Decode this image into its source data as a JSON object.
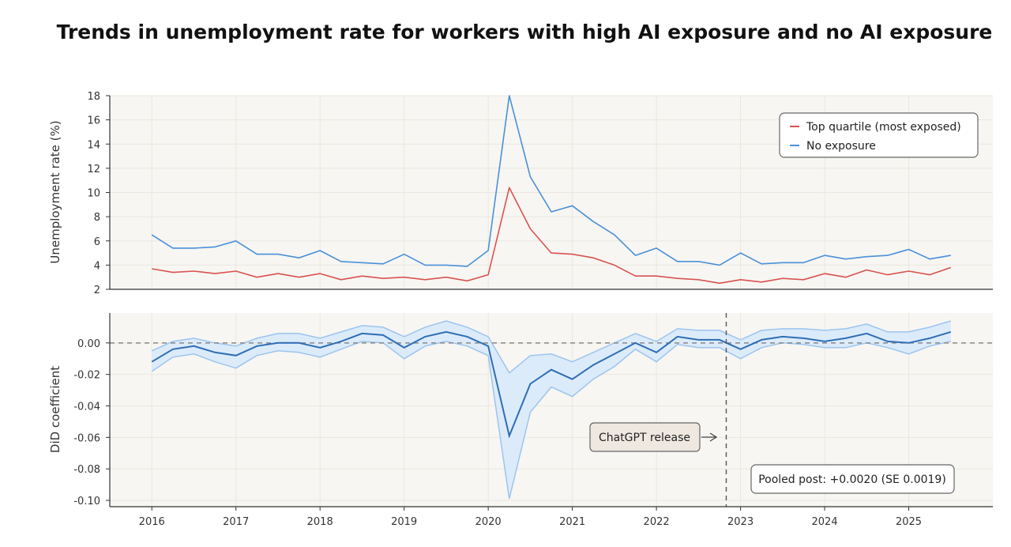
{
  "title": "Trends in unemployment rate for workers with high AI exposure and no AI exposure",
  "x_tick_labels": [
    "2016",
    "2017",
    "2018",
    "2019",
    "2020",
    "2021",
    "2022",
    "2023",
    "2024",
    "2025"
  ],
  "colors": {
    "top_quartile": "#d9534f",
    "no_exposure": "#4a90d9",
    "did_line": "#2f6db5",
    "ci_fill": "#dcebfa",
    "ci_edge": "#9cc4ee",
    "plot_bg": "#f7f6f3",
    "grid": "#ebe7df",
    "axis": "#333333",
    "annotation_box": "#efe8e0"
  },
  "chart_data": [
    {
      "type": "line",
      "ylabel": "Unemployment rate (%)",
      "xlim": [
        2015.5,
        2026.0
      ],
      "ylim": [
        2,
        18
      ],
      "y_ticks": [
        2,
        4,
        6,
        8,
        10,
        12,
        14,
        16,
        18
      ],
      "grid": true,
      "legend_position": "top-right",
      "x": [
        2016.0,
        2016.25,
        2016.5,
        2016.75,
        2017.0,
        2017.25,
        2017.5,
        2017.75,
        2018.0,
        2018.25,
        2018.5,
        2018.75,
        2019.0,
        2019.25,
        2019.5,
        2019.75,
        2020.0,
        2020.25,
        2020.5,
        2020.75,
        2021.0,
        2021.25,
        2021.5,
        2021.75,
        2022.0,
        2022.25,
        2022.5,
        2022.75,
        2023.0,
        2023.25,
        2023.5,
        2023.75,
        2024.0,
        2024.25,
        2024.5,
        2024.75,
        2025.0,
        2025.25,
        2025.5
      ],
      "series": [
        {
          "name": "Top quartile (most exposed)",
          "values": [
            3.7,
            3.4,
            3.5,
            3.3,
            3.5,
            3.0,
            3.3,
            3.0,
            3.3,
            2.8,
            3.1,
            2.9,
            3.0,
            2.8,
            3.0,
            2.7,
            3.2,
            10.4,
            7.0,
            5.0,
            4.9,
            4.6,
            4.0,
            3.1,
            3.1,
            2.9,
            2.8,
            2.5,
            2.8,
            2.6,
            2.9,
            2.8,
            3.3,
            3.0,
            3.6,
            3.2,
            3.5,
            3.2,
            3.8
          ]
        },
        {
          "name": "No exposure",
          "values": [
            6.5,
            5.4,
            5.4,
            5.5,
            6.0,
            4.9,
            4.9,
            4.6,
            5.2,
            4.3,
            4.2,
            4.1,
            4.9,
            4.0,
            4.0,
            3.9,
            5.2,
            18.0,
            11.3,
            8.4,
            8.9,
            7.6,
            6.5,
            4.8,
            5.4,
            4.3,
            4.3,
            4.0,
            5.0,
            4.1,
            4.2,
            4.2,
            4.8,
            4.5,
            4.7,
            4.8,
            5.3,
            4.5,
            4.8
          ]
        }
      ]
    },
    {
      "type": "line",
      "ylabel": "DiD coefficient",
      "xlim": [
        2015.5,
        2026.0
      ],
      "ylim": [
        -0.104,
        0.019
      ],
      "y_ticks": [
        0.0,
        -0.02,
        -0.04,
        -0.06,
        -0.08,
        -0.1
      ],
      "y_tick_labels": [
        "0.00",
        "-0.02",
        "-0.04",
        "-0.06",
        "-0.08",
        "-0.10"
      ],
      "grid": true,
      "reference_line_y": 0,
      "x": [
        2016.0,
        2016.25,
        2016.5,
        2016.75,
        2017.0,
        2017.25,
        2017.5,
        2017.75,
        2018.0,
        2018.25,
        2018.5,
        2018.75,
        2019.0,
        2019.25,
        2019.5,
        2019.75,
        2020.0,
        2020.25,
        2020.5,
        2020.75,
        2021.0,
        2021.25,
        2021.5,
        2021.75,
        2022.0,
        2022.25,
        2022.5,
        2022.75,
        2023.0,
        2023.25,
        2023.5,
        2023.75,
        2024.0,
        2024.25,
        2024.5,
        2024.75,
        2025.0,
        2025.25,
        2025.5
      ],
      "series": [
        {
          "name": "DiD coefficient",
          "values": [
            -0.012,
            -0.004,
            -0.002,
            -0.006,
            -0.008,
            -0.002,
            0.0,
            0.0,
            -0.003,
            0.001,
            0.006,
            0.005,
            -0.003,
            0.004,
            0.007,
            0.004,
            -0.002,
            -0.059,
            -0.026,
            -0.017,
            -0.023,
            -0.014,
            -0.007,
            0.0,
            -0.006,
            0.004,
            0.002,
            0.002,
            -0.004,
            0.002,
            0.004,
            0.003,
            0.001,
            0.003,
            0.006,
            0.001,
            0.0,
            0.003,
            0.007
          ],
          "ci_lower": [
            -0.018,
            -0.009,
            -0.007,
            -0.012,
            -0.016,
            -0.008,
            -0.005,
            -0.006,
            -0.009,
            -0.004,
            0.001,
            0.0,
            -0.01,
            -0.002,
            0.001,
            -0.002,
            -0.008,
            -0.099,
            -0.044,
            -0.028,
            -0.034,
            -0.023,
            -0.015,
            -0.004,
            -0.012,
            -0.001,
            -0.003,
            -0.003,
            -0.01,
            -0.003,
            0.0,
            -0.001,
            -0.003,
            -0.003,
            0.0,
            -0.003,
            -0.007,
            -0.002,
            0.001
          ],
          "ci_upper": [
            -0.005,
            0.001,
            0.003,
            0.0,
            -0.002,
            0.003,
            0.006,
            0.006,
            0.003,
            0.007,
            0.011,
            0.01,
            0.004,
            0.01,
            0.014,
            0.01,
            0.004,
            -0.019,
            -0.008,
            -0.007,
            -0.012,
            -0.006,
            0.0,
            0.006,
            0.001,
            0.009,
            0.008,
            0.008,
            0.002,
            0.008,
            0.009,
            0.009,
            0.008,
            0.009,
            0.012,
            0.007,
            0.007,
            0.01,
            0.014
          ]
        }
      ],
      "vertical_marker_x": 2022.83,
      "annotations": [
        {
          "text": "ChatGPT release",
          "x": 2022.6,
          "y": -0.06
        },
        {
          "text": "Pooled post: +0.0020 (SE 0.0019)",
          "x": 2024.0,
          "y": -0.087
        }
      ]
    }
  ]
}
